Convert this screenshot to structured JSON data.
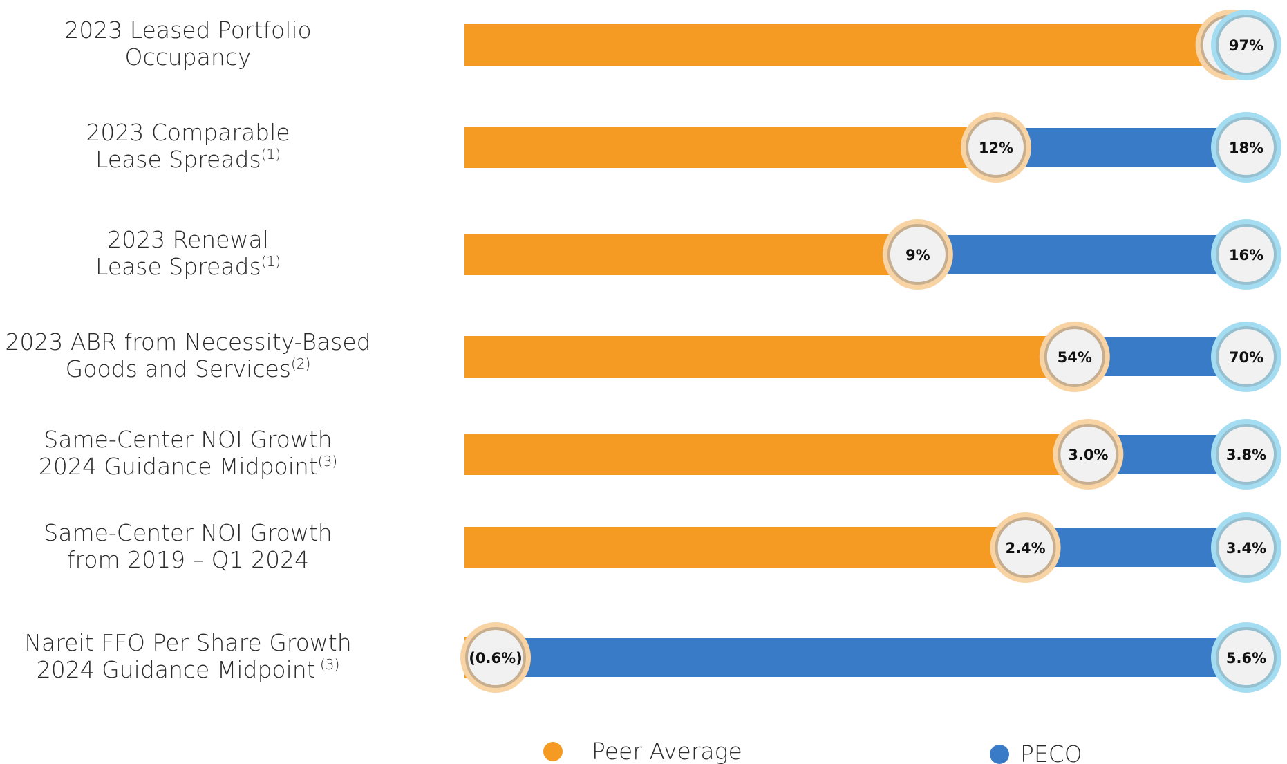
{
  "chart_data": {
    "type": "bar",
    "series": [
      {
        "name": "Peer Average",
        "color": "#F59B23",
        "ring_color": "#F8D3A4",
        "values": [
          95,
          12,
          9,
          54,
          3.0,
          2.4,
          -0.6
        ]
      },
      {
        "name": "PECO",
        "color": "#3A7BC8",
        "ring_color": "#A4DDF2",
        "values": [
          97,
          18,
          16,
          70,
          3.8,
          3.4,
          5.6
        ]
      }
    ],
    "categories": [
      {
        "lines": [
          "2023 Leased Portfolio",
          "Occupancy"
        ],
        "sup": ""
      },
      {
        "lines": [
          "2023 Comparable",
          "Lease Spreads"
        ],
        "sup": "(1)"
      },
      {
        "lines": [
          "2023 Renewal",
          "Lease Spreads"
        ],
        "sup": "(1)"
      },
      {
        "lines": [
          "2023 ABR from Necessity-Based",
          "Goods and Services"
        ],
        "sup": "(2)"
      },
      {
        "lines": [
          "Same-Center NOI Growth",
          "2024 Guidance Midpoint"
        ],
        "sup": "(3)"
      },
      {
        "lines": [
          "Same-Center NOI Growth",
          "from 2019 – Q1 2024"
        ],
        "sup": ""
      },
      {
        "lines": [
          "Nareit FFO Per Share Growth",
          "2024 Guidance Midpoint"
        ],
        "sup": " (3)"
      }
    ],
    "value_labels": [
      {
        "peer": "95%",
        "peco": "97%"
      },
      {
        "peer": "12%",
        "peco": "18%"
      },
      {
        "peer": "9%",
        "peco": "16%"
      },
      {
        "peer": "54%",
        "peco": "70%"
      },
      {
        "peer": "3.0%",
        "peco": "3.8%"
      },
      {
        "peer": "2.4%",
        "peco": "3.4%"
      },
      {
        "peer": "(0.6%)",
        "peco": "5.6%"
      }
    ],
    "legend": {
      "placement": "bottom",
      "items": [
        "Peer Average",
        "PECO"
      ]
    },
    "grid": false
  }
}
